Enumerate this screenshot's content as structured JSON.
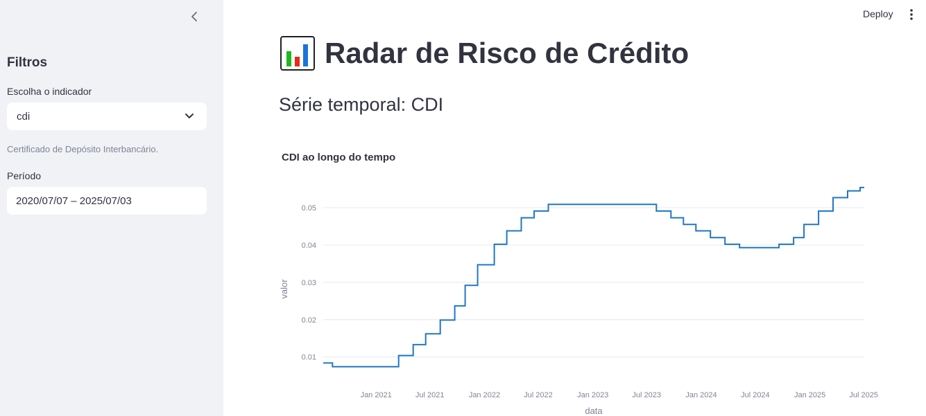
{
  "sidebar": {
    "title": "Filtros",
    "indicator_label": "Escolha o indicador",
    "indicator_value": "cdi",
    "indicator_caption": "Certificado de Depósito Interbancário.",
    "period_label": "Período",
    "period_value": "2020/07/07 – 2025/07/03"
  },
  "header": {
    "deploy_label": "Deploy"
  },
  "main": {
    "title": "Radar de Risco de Crédito",
    "subtitle": "Série temporal: CDI"
  },
  "chart_data": {
    "type": "line",
    "line_shape": "step",
    "title": "CDI ao longo do tempo",
    "xlabel": "data",
    "ylabel": "valor",
    "color": "#1f77c4",
    "grid": true,
    "x_range": [
      "2020-07-07",
      "2025-07-03"
    ],
    "y_range": [
      0.0055,
      0.0565
    ],
    "x_ticks": [
      {
        "date": "2021-01-01",
        "label": "Jan 2021"
      },
      {
        "date": "2021-07-01",
        "label": "Jul 2021"
      },
      {
        "date": "2022-01-01",
        "label": "Jan 2022"
      },
      {
        "date": "2022-07-01",
        "label": "Jul 2022"
      },
      {
        "date": "2023-01-01",
        "label": "Jan 2023"
      },
      {
        "date": "2023-07-01",
        "label": "Jul 2023"
      },
      {
        "date": "2024-01-01",
        "label": "Jan 2024"
      },
      {
        "date": "2024-07-01",
        "label": "Jul 2024"
      },
      {
        "date": "2025-01-01",
        "label": "Jan 2025"
      },
      {
        "date": "2025-07-01",
        "label": "Jul 2025"
      }
    ],
    "y_ticks": [
      {
        "value": 0.01,
        "label": "0.01"
      },
      {
        "value": 0.02,
        "label": "0.02"
      },
      {
        "value": 0.03,
        "label": "0.03"
      },
      {
        "value": 0.04,
        "label": "0.04"
      },
      {
        "value": 0.05,
        "label": "0.05"
      }
    ],
    "points": [
      {
        "x": "2020-07-07",
        "y": 0.0084
      },
      {
        "x": "2020-08-07",
        "y": 0.0074
      },
      {
        "x": "2021-03-18",
        "y": 0.0104
      },
      {
        "x": "2021-05-06",
        "y": 0.0133
      },
      {
        "x": "2021-06-17",
        "y": 0.0162
      },
      {
        "x": "2021-08-05",
        "y": 0.0199
      },
      {
        "x": "2021-09-23",
        "y": 0.0237
      },
      {
        "x": "2021-10-28",
        "y": 0.0292
      },
      {
        "x": "2021-12-09",
        "y": 0.0347
      },
      {
        "x": "2022-02-03",
        "y": 0.0402
      },
      {
        "x": "2022-03-17",
        "y": 0.0438
      },
      {
        "x": "2022-05-05",
        "y": 0.0473
      },
      {
        "x": "2022-06-17",
        "y": 0.0491
      },
      {
        "x": "2022-08-04",
        "y": 0.0509
      },
      {
        "x": "2023-08-03",
        "y": 0.0491
      },
      {
        "x": "2023-09-21",
        "y": 0.0473
      },
      {
        "x": "2023-11-02",
        "y": 0.0455
      },
      {
        "x": "2023-12-14",
        "y": 0.0438
      },
      {
        "x": "2024-02-01",
        "y": 0.042
      },
      {
        "x": "2024-03-21",
        "y": 0.0402
      },
      {
        "x": "2024-05-09",
        "y": 0.0393
      },
      {
        "x": "2024-09-19",
        "y": 0.0402
      },
      {
        "x": "2024-11-07",
        "y": 0.042
      },
      {
        "x": "2024-12-12",
        "y": 0.0455
      },
      {
        "x": "2025-01-30",
        "y": 0.0491
      },
      {
        "x": "2025-03-20",
        "y": 0.0527
      },
      {
        "x": "2025-05-08",
        "y": 0.0545
      },
      {
        "x": "2025-06-19",
        "y": 0.0554
      },
      {
        "x": "2025-07-03",
        "y": 0.0554
      }
    ]
  }
}
